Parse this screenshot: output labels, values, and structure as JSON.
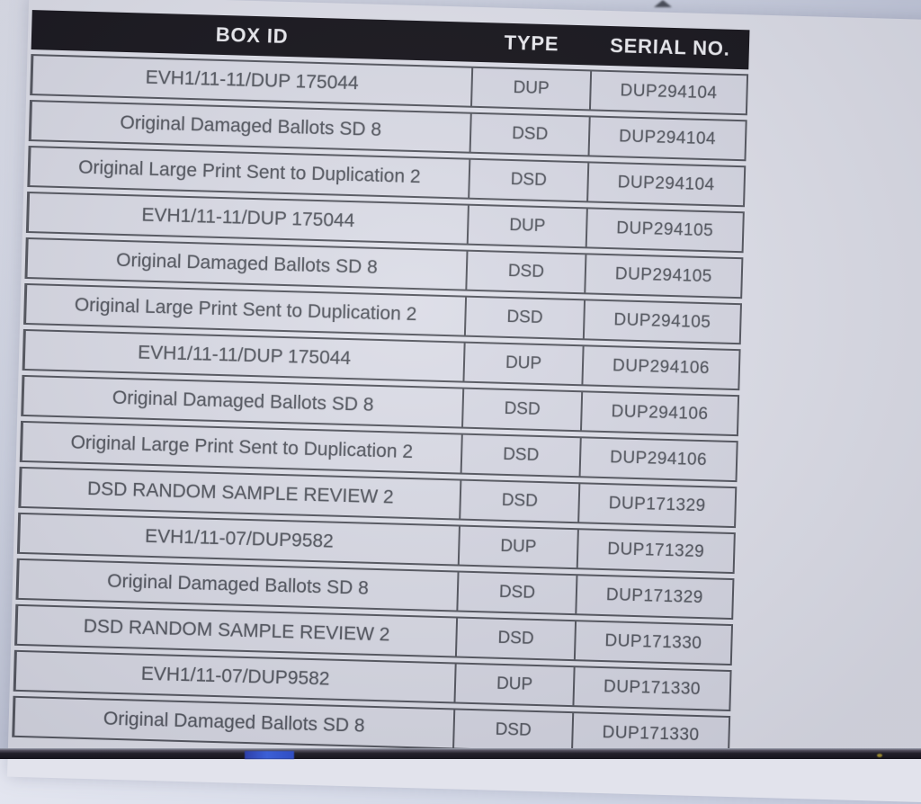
{
  "header": {
    "columns": [
      "BOX ID",
      "TYPE",
      "SERIAL NO."
    ]
  },
  "table": {
    "rows": [
      {
        "box_id": "EVH1/11-11/DUP 175044",
        "type": "DUP",
        "serial": "DUP294104"
      },
      {
        "box_id": "Original Damaged Ballots SD 8",
        "type": "DSD",
        "serial": "DUP294104"
      },
      {
        "box_id": "Original Large Print Sent to Duplication 2",
        "type": "DSD",
        "serial": "DUP294104"
      },
      {
        "box_id": "EVH1/11-11/DUP 175044",
        "type": "DUP",
        "serial": "DUP294105"
      },
      {
        "box_id": "Original Damaged Ballots SD 8",
        "type": "DSD",
        "serial": "DUP294105"
      },
      {
        "box_id": "Original Large Print Sent to Duplication 2",
        "type": "DSD",
        "serial": "DUP294105"
      },
      {
        "box_id": "EVH1/11-11/DUP 175044",
        "type": "DUP",
        "serial": "DUP294106"
      },
      {
        "box_id": "Original Damaged Ballots SD 8",
        "type": "DSD",
        "serial": "DUP294106"
      },
      {
        "box_id": "Original Large Print Sent to Duplication 2",
        "type": "DSD",
        "serial": "DUP294106"
      },
      {
        "box_id": "DSD RANDOM SAMPLE REVIEW 2",
        "type": "DSD",
        "serial": "DUP171329"
      },
      {
        "box_id": "EVH1/11-07/DUP9582",
        "type": "DUP",
        "serial": "DUP171329"
      },
      {
        "box_id": "Original Damaged Ballots SD 8",
        "type": "DSD",
        "serial": "DUP171329"
      },
      {
        "box_id": "DSD RANDOM SAMPLE REVIEW 2",
        "type": "DSD",
        "serial": "DUP171330"
      },
      {
        "box_id": "EVH1/11-07/DUP9582",
        "type": "DUP",
        "serial": "DUP171330"
      },
      {
        "box_id": "Original Damaged Ballots SD 8",
        "type": "DSD",
        "serial": "DUP171330"
      }
    ]
  },
  "colors": {
    "header_bg": "#17151b",
    "header_text": "#f0f0f4",
    "cell_bg": "#dcdde7",
    "cell_text": "#54575f",
    "page_bg": "#e2e3ec",
    "screen_bezel": "#16151c",
    "bezel_blue_segment": "#3b63e6",
    "bezel_yellow_dot": "#a5922e"
  }
}
